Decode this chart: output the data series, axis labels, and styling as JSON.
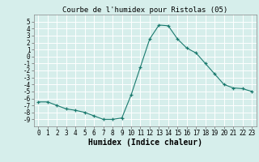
{
  "x": [
    0,
    1,
    2,
    3,
    4,
    5,
    6,
    7,
    8,
    9,
    10,
    11,
    12,
    13,
    14,
    15,
    16,
    17,
    18,
    19,
    20,
    21,
    22,
    23
  ],
  "y": [
    -6.5,
    -6.5,
    -7.0,
    -7.5,
    -7.7,
    -8.0,
    -8.5,
    -9.0,
    -9.0,
    -8.8,
    -5.5,
    -1.5,
    2.5,
    4.5,
    4.4,
    2.5,
    1.2,
    0.5,
    -1.0,
    -2.5,
    -4.0,
    -4.5,
    -4.6,
    -5.0
  ],
  "title": "Courbe de l'humidex pour Ristolas (05)",
  "xlabel": "Humidex (Indice chaleur)",
  "ylabel": "",
  "xlim": [
    -0.5,
    23.5
  ],
  "ylim": [
    -10,
    6
  ],
  "yticks": [
    5,
    4,
    3,
    2,
    1,
    0,
    -1,
    -2,
    -3,
    -4,
    -5,
    -6,
    -7,
    -8,
    -9
  ],
  "xticks": [
    0,
    1,
    2,
    3,
    4,
    5,
    6,
    7,
    8,
    9,
    10,
    11,
    12,
    13,
    14,
    15,
    16,
    17,
    18,
    19,
    20,
    21,
    22,
    23
  ],
  "line_color": "#1a7a6e",
  "marker": "+",
  "bg_color": "#d6eeeb",
  "grid_color": "#ffffff",
  "title_fontsize": 6.5,
  "label_fontsize": 7,
  "tick_fontsize": 5.5
}
